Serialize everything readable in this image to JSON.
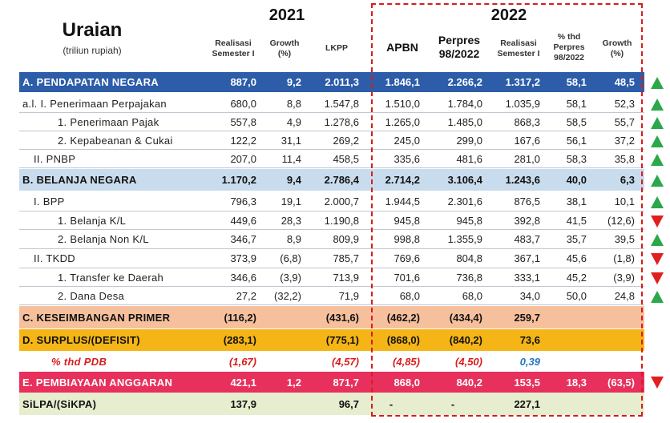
{
  "header": {
    "title": "Uraian",
    "subtitle": "(triliun rupiah)",
    "year_2021": "2021",
    "year_2022": "2022",
    "columns": {
      "c1": [
        "Realisasi",
        "Semester I"
      ],
      "c2": [
        "Growth",
        "(%)"
      ],
      "c3": [
        "LKPP"
      ],
      "c4": [
        "APBN"
      ],
      "c5": [
        "Perpres",
        "98/2022"
      ],
      "c6": [
        "Realisasi",
        "Semester I"
      ],
      "c7": [
        "% thd",
        "Perpres",
        "98/2022"
      ],
      "c8": [
        "Growth",
        "(%)"
      ]
    }
  },
  "rows": [
    {
      "label": "A. PENDAPATAN NEGARA",
      "v": [
        "887,0",
        "9,2",
        "2.011,3",
        "1.846,1",
        "2.266,2",
        "1.317,2",
        "58,1",
        "48,5"
      ],
      "trend": "up"
    },
    {
      "label": "a.l. I.   Penerimaan Perpajakan",
      "v": [
        "680,0",
        "8,8",
        "1.547,8",
        "1.510,0",
        "1.784,0",
        "1.035,9",
        "58,1",
        "52,3"
      ],
      "trend": "up"
    },
    {
      "label": "1.  Penerimaan Pajak",
      "v": [
        "557,8",
        "4,9",
        "1.278,6",
        "1.265,0",
        "1.485,0",
        "868,3",
        "58,5",
        "55,7"
      ],
      "trend": "up"
    },
    {
      "label": "2.  Kepabeanan & Cukai",
      "v": [
        "122,2",
        "31,1",
        "269,2",
        "245,0",
        "299,0",
        "167,6",
        "56,1",
        "37,2"
      ],
      "trend": "up"
    },
    {
      "label": "II.  PNBP",
      "v": [
        "207,0",
        "11,4",
        "458,5",
        "335,6",
        "481,6",
        "281,0",
        "58,3",
        "35,8"
      ],
      "trend": "up"
    },
    {
      "label": "B. BELANJA NEGARA",
      "v": [
        "1.170,2",
        "9,4",
        "2.786,4",
        "2.714,2",
        "3.106,4",
        "1.243,6",
        "40,0",
        "6,3"
      ],
      "trend": "up"
    },
    {
      "label": "I.   BPP",
      "v": [
        "796,3",
        "19,1",
        "2.000,7",
        "1.944,5",
        "2.301,6",
        "876,5",
        "38,1",
        "10,1"
      ],
      "trend": "up"
    },
    {
      "label": "1.  Belanja K/L",
      "v": [
        "449,6",
        "28,3",
        "1.190,8",
        "945,8",
        "945,8",
        "392,8",
        "41,5",
        "(12,6)"
      ],
      "trend": "down"
    },
    {
      "label": "2.  Belanja Non K/L",
      "v": [
        "346,7",
        "8,9",
        "809,9",
        "998,8",
        "1.355,9",
        "483,7",
        "35,7",
        "39,5"
      ],
      "trend": "up"
    },
    {
      "label": "II.  TKDD",
      "v": [
        "373,9",
        "(6,8)",
        "785,7",
        "769,6",
        "804,8",
        "367,1",
        "45,6",
        "(1,8)"
      ],
      "trend": "down"
    },
    {
      "label": "1.  Transfer ke Daerah",
      "v": [
        "346,6",
        "(3,9)",
        "713,9",
        "701,6",
        "736,8",
        "333,1",
        "45,2",
        "(3,9)"
      ],
      "trend": "down"
    },
    {
      "label": "2.  Dana Desa",
      "v": [
        "27,2",
        "(32,2)",
        "71,9",
        "68,0",
        "68,0",
        "34,0",
        "50,0",
        "24,8"
      ],
      "trend": "up"
    },
    {
      "label": "C. KESEIMBANGAN PRIMER",
      "v": [
        "(116,2)",
        "",
        "(431,6)",
        "(462,2)",
        "(434,4)",
        "259,7",
        "",
        ""
      ],
      "trend": ""
    },
    {
      "label": "D. SURPLUS/(DEFISIT)",
      "v": [
        "(283,1)",
        "",
        "(775,1)",
        "(868,0)",
        "(840,2)",
        "73,6",
        "",
        ""
      ],
      "trend": ""
    },
    {
      "label": "% thd PDB",
      "v": [
        "(1,67)",
        "",
        "(4,57)",
        "(4,85)",
        "(4,50)",
        "0,39",
        "",
        ""
      ],
      "trend": ""
    },
    {
      "label": "E. PEMBIAYAAN ANGGARAN",
      "v": [
        "421,1",
        "1,2",
        "871,7",
        "868,0",
        "840,2",
        "153,5",
        "18,3",
        "(63,5)"
      ],
      "trend": "down"
    },
    {
      "label": "SiLPA/(SiKPA)",
      "v": [
        "137,9",
        "",
        "96,7",
        "-",
        "-",
        "227,1",
        "",
        ""
      ],
      "trend": ""
    }
  ],
  "colors": {
    "pendapatan": "#2d5ca8",
    "belanja": "#c9dcee",
    "keseimbangan": "#f6c09d",
    "surplus": "#f5b516",
    "pembiayaan": "#e8305c",
    "silpa": "#e7edcf",
    "up_arrow": "#2aa84a",
    "down_arrow": "#e02020",
    "highlight_border": "#d81c1c"
  }
}
